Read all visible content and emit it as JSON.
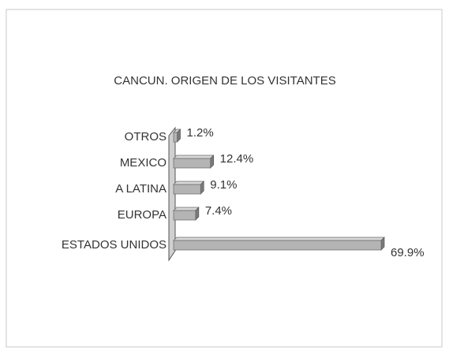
{
  "chart_data": {
    "type": "bar",
    "orientation": "horizontal",
    "title": "CANCUN. ORIGEN DE LOS VISITANTES",
    "categories": [
      "OTROS",
      "MEXICO",
      "A LATINA",
      "EUROPA",
      "ESTADOS UNIDOS"
    ],
    "values": [
      1.2,
      12.4,
      9.1,
      7.4,
      69.9
    ],
    "value_labels": [
      "1.2%",
      "12.4%",
      "9.1%",
      "7.4%",
      "69.9%"
    ],
    "color": "#b4b4b4"
  }
}
